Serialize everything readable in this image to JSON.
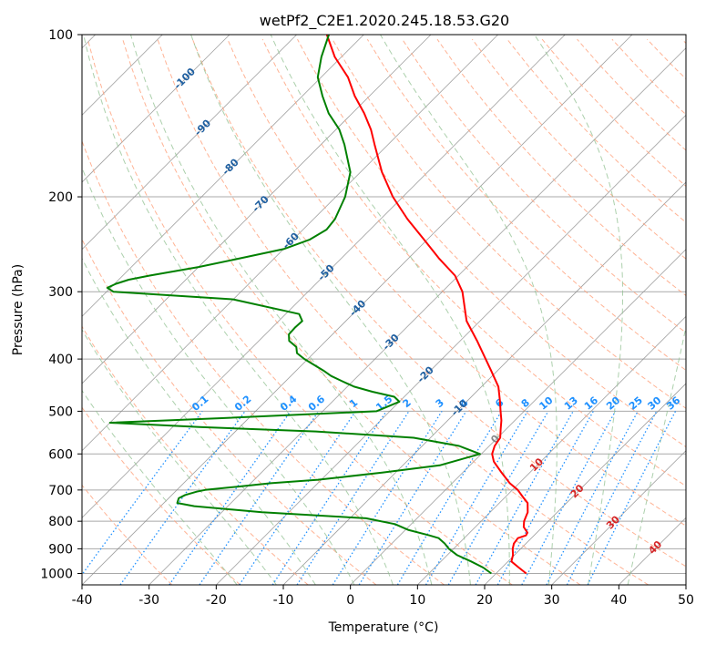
{
  "chart_data": {
    "type": "line",
    "title": "wetPf2_C2E1.2020.245.18.53.G20",
    "xlabel": "Temperature (°C)",
    "ylabel": "Pressure (hPa)",
    "xlim": [
      -40,
      50
    ],
    "ylim": [
      1050,
      100
    ],
    "y_scale": "log",
    "skew": true,
    "grid": true,
    "x_ticks": [
      -40,
      -30,
      -20,
      -10,
      0,
      10,
      20,
      30,
      40,
      50
    ],
    "y_ticks": [
      100,
      200,
      300,
      400,
      500,
      600,
      700,
      800,
      900,
      1000
    ],
    "series": [
      {
        "color": "#ff0000",
        "pressure": [
          1000,
          975,
          950,
          925,
          900,
          880,
          860,
          850,
          840,
          820,
          800,
          770,
          740,
          720,
          700,
          680,
          650,
          620,
          600,
          580,
          560,
          540,
          520,
          500,
          480,
          450,
          420,
          400,
          370,
          340,
          300,
          280,
          260,
          240,
          220,
          200,
          180,
          160,
          150,
          140,
          130,
          120,
          110,
          100
        ],
        "temperature": [
          24.5,
          22.5,
          20.5,
          19.8,
          18.8,
          18.2,
          18.0,
          18.8,
          18.6,
          17.2,
          16.4,
          15.6,
          14.2,
          12.5,
          10.8,
          8.6,
          5.8,
          3.0,
          1.6,
          0.8,
          0.4,
          -0.8,
          -2.0,
          -3.5,
          -5.0,
          -7.5,
          -11.0,
          -13.5,
          -17.5,
          -22.0,
          -27.0,
          -30.5,
          -35.5,
          -40.5,
          -46.0,
          -51.5,
          -56.8,
          -62.0,
          -64.8,
          -68.2,
          -72.2,
          -76.0,
          -81.0,
          -85.5
        ]
      },
      {
        "color": "#008000",
        "pressure": [
          1000,
          975,
          950,
          925,
          900,
          880,
          860,
          850,
          830,
          810,
          790,
          770,
          750,
          740,
          725,
          715,
          705,
          700,
          690,
          680,
          670,
          650,
          630,
          600,
          580,
          560,
          545,
          535,
          525,
          515,
          500,
          480,
          470,
          460,
          450,
          440,
          430,
          420,
          400,
          390,
          380,
          370,
          360,
          350,
          340,
          330,
          310,
          300,
          295,
          290,
          285,
          280,
          270,
          260,
          250,
          240,
          230,
          220,
          200,
          180,
          160,
          150,
          140,
          130,
          120,
          110,
          100
        ],
        "temperature": [
          19.3,
          17.2,
          14.5,
          11.5,
          9.3,
          7.9,
          6.2,
          4.4,
          0.4,
          -2.4,
          -7.6,
          -24.0,
          -35.0,
          -38.0,
          -38.5,
          -38.0,
          -36.8,
          -35.8,
          -31.5,
          -27.0,
          -20.5,
          -12.0,
          -4.5,
          -0.2,
          -4.5,
          -12.5,
          -28.0,
          -46.0,
          -60.0,
          -44.0,
          -22.0,
          -20.0,
          -21.5,
          -25.5,
          -29.0,
          -31.5,
          -34.0,
          -36.0,
          -40.5,
          -42.5,
          -43.5,
          -45.5,
          -46.5,
          -46.6,
          -46.5,
          -48.0,
          -60.0,
          -79.0,
          -80.5,
          -79.8,
          -78.5,
          -76.0,
          -70.0,
          -65.0,
          -60.0,
          -57.5,
          -56.5,
          -56.8,
          -58.6,
          -61.5,
          -66.5,
          -69.5,
          -73.5,
          -77.0,
          -80.5,
          -83.0,
          -85.2
        ]
      }
    ],
    "ref_lines": {
      "isotherm_labels": [
        "-100",
        "-90",
        "-80",
        "-70",
        "-60",
        "-50",
        "-40",
        "-30",
        "-20",
        "-10",
        "0",
        "10",
        "20",
        "30",
        "40"
      ],
      "mixing_ratio_labels": [
        "0.1",
        "0.2",
        "0.4",
        "0.6",
        "1",
        "1.5",
        "2",
        "3",
        "4",
        "6",
        "8",
        "10",
        "13",
        "16",
        "20",
        "25",
        "30",
        "36"
      ]
    }
  },
  "colors": {
    "temperature": "#ff0000",
    "dewpoint": "#008000",
    "isotherm_label_cold": "#1f5fa0",
    "isotherm_label_warm": "#d62728",
    "isotherm_label_zero": "#888888",
    "mixing_ratio": "#1e90ff",
    "dry_adiabat": "#ffa07a",
    "moist_adiabat": "#90c090",
    "isobar": "#a9a9a9",
    "skewed_isotherm": "#888888"
  }
}
